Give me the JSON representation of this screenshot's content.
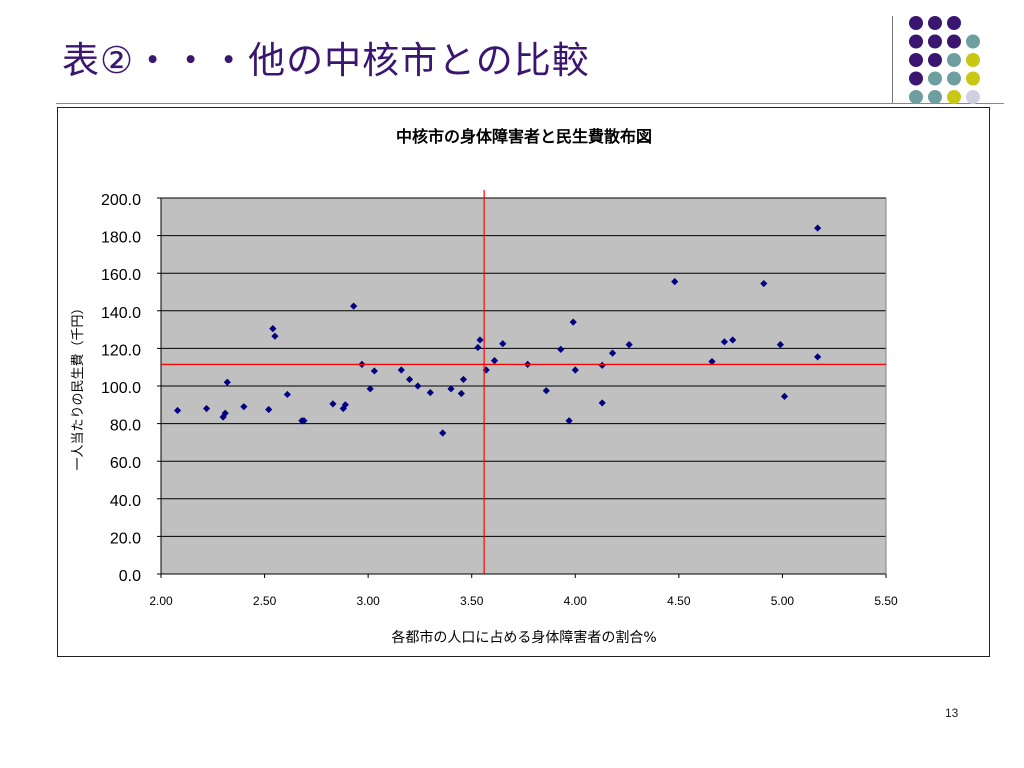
{
  "slide": {
    "title": "表②・・・他の中核市との比較",
    "page_number": "13"
  },
  "colors": {
    "title": "#3b1670",
    "plot_background": "#c0c0c0",
    "marker": "#000080",
    "reference_line": "#ff0000",
    "dot_purple": "#3b1670",
    "dot_teal": "#6f9ea0",
    "dot_yellow": "#c8c814",
    "dot_light": "#d0d0e0"
  },
  "decoration": {
    "dots": [
      [
        "purple",
        "purple",
        "purple",
        ""
      ],
      [
        "purple",
        "purple",
        "purple",
        "teal"
      ],
      [
        "purple",
        "purple",
        "teal",
        "yellow"
      ],
      [
        "purple",
        "teal",
        "teal",
        "yellow"
      ],
      [
        "teal",
        "teal",
        "yellow",
        "light"
      ]
    ]
  },
  "chart_data": {
    "type": "scatter",
    "title": "中核市の身体障害者と民生費散布図",
    "xlabel": "各都市の人口に占める身体障害者の割合%",
    "ylabel": "一人当たりの民生費（千円）",
    "xlim": [
      2.0,
      5.5
    ],
    "ylim": [
      0.0,
      200.0
    ],
    "x_ticks": [
      "2.00",
      "2.50",
      "3.00",
      "3.50",
      "4.00",
      "4.50",
      "5.00",
      "5.50"
    ],
    "y_ticks": [
      "200.0",
      "180.0",
      "160.0",
      "140.0",
      "120.0",
      "100.0",
      "80.0",
      "60.0",
      "40.0",
      "20.0",
      "0.0"
    ],
    "grid": "horizontal",
    "reference_lines": {
      "x": 3.56,
      "y": 111.5
    },
    "points": [
      {
        "x": 2.08,
        "y": 87
      },
      {
        "x": 2.22,
        "y": 88
      },
      {
        "x": 2.3,
        "y": 83.5
      },
      {
        "x": 2.31,
        "y": 85.5
      },
      {
        "x": 2.32,
        "y": 102
      },
      {
        "x": 2.4,
        "y": 89
      },
      {
        "x": 2.52,
        "y": 87.5
      },
      {
        "x": 2.54,
        "y": 130.5
      },
      {
        "x": 2.55,
        "y": 126.5
      },
      {
        "x": 2.61,
        "y": 95.5
      },
      {
        "x": 2.68,
        "y": 81.5
      },
      {
        "x": 2.69,
        "y": 81.5
      },
      {
        "x": 2.83,
        "y": 90.5
      },
      {
        "x": 2.88,
        "y": 88
      },
      {
        "x": 2.89,
        "y": 90
      },
      {
        "x": 2.93,
        "y": 142.5
      },
      {
        "x": 2.97,
        "y": 111.5
      },
      {
        "x": 3.01,
        "y": 98.5
      },
      {
        "x": 3.03,
        "y": 108
      },
      {
        "x": 3.16,
        "y": 108.5
      },
      {
        "x": 3.2,
        "y": 103.5
      },
      {
        "x": 3.24,
        "y": 100
      },
      {
        "x": 3.3,
        "y": 96.5
      },
      {
        "x": 3.36,
        "y": 75
      },
      {
        "x": 3.4,
        "y": 98.5
      },
      {
        "x": 3.45,
        "y": 96
      },
      {
        "x": 3.46,
        "y": 103.5
      },
      {
        "x": 3.53,
        "y": 120.5
      },
      {
        "x": 3.54,
        "y": 124.5
      },
      {
        "x": 3.57,
        "y": 108.5
      },
      {
        "x": 3.61,
        "y": 113.5
      },
      {
        "x": 3.65,
        "y": 122.5
      },
      {
        "x": 3.77,
        "y": 111.5
      },
      {
        "x": 3.86,
        "y": 97.5
      },
      {
        "x": 3.93,
        "y": 119.5
      },
      {
        "x": 3.97,
        "y": 81.5
      },
      {
        "x": 3.99,
        "y": 134
      },
      {
        "x": 4.0,
        "y": 108.5
      },
      {
        "x": 4.13,
        "y": 111
      },
      {
        "x": 4.13,
        "y": 91
      },
      {
        "x": 4.18,
        "y": 117.5
      },
      {
        "x": 4.26,
        "y": 122
      },
      {
        "x": 4.48,
        "y": 155.5
      },
      {
        "x": 4.66,
        "y": 113
      },
      {
        "x": 4.72,
        "y": 123.5
      },
      {
        "x": 4.76,
        "y": 124.5
      },
      {
        "x": 4.91,
        "y": 154.5
      },
      {
        "x": 4.99,
        "y": 122
      },
      {
        "x": 5.01,
        "y": 94.5
      },
      {
        "x": 5.17,
        "y": 184
      },
      {
        "x": 5.17,
        "y": 115.5
      }
    ]
  }
}
